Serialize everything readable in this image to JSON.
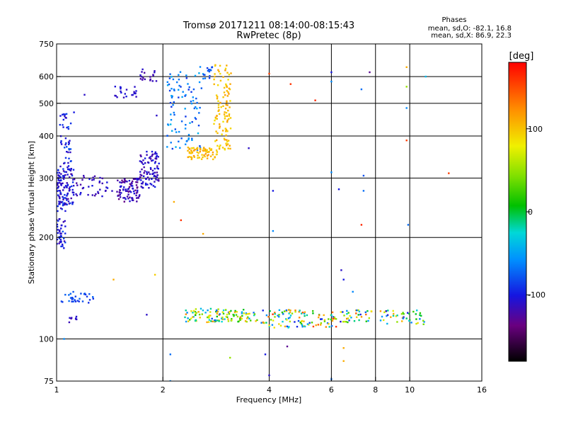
{
  "chart_data": {
    "type": "scatter",
    "title": "Tromsø 20171211 08:14:00-08:15:43",
    "subtitle": "RwPretec (8p)",
    "xlabel": "Frequency [MHz]",
    "ylabel": "Stationary phase Virtual Height [km]",
    "x_scale": "log",
    "y_scale": "log",
    "xlim": [
      1,
      16
    ],
    "ylim": [
      75,
      750
    ],
    "x_ticks": [
      1,
      2,
      4,
      6,
      8,
      10,
      16
    ],
    "y_ticks": [
      75,
      100,
      200,
      300,
      400,
      500,
      600,
      750
    ],
    "grid": true,
    "stats": {
      "heading": "Phases",
      "line_o": "mean, sd,O: -82.1, 16.8",
      "line_x": "mean, sd,X: 86.9, 22.3"
    },
    "colorbar": {
      "label": "[deg]",
      "range": [
        -180,
        180
      ],
      "ticks": [
        100,
        0,
        -100
      ],
      "tick_labels": [
        "100",
        "0",
        "-100"
      ]
    },
    "clusters": [
      {
        "f": [
          1.0,
          1.06
        ],
        "h": [
          185,
          260
        ],
        "n": 50,
        "phase": [
          -120,
          -80
        ]
      },
      {
        "f": [
          1.0,
          1.12
        ],
        "h": [
          250,
          320
        ],
        "n": 110,
        "phase": [
          -125,
          -85
        ]
      },
      {
        "f": [
          1.02,
          1.1
        ],
        "h": [
          320,
          470
        ],
        "n": 45,
        "phase": [
          -115,
          -75
        ]
      },
      {
        "f": [
          1.1,
          1.45
        ],
        "h": [
          265,
          305
        ],
        "n": 40,
        "phase": [
          -125,
          -100
        ]
      },
      {
        "f": [
          1.48,
          1.72
        ],
        "h": [
          255,
          300
        ],
        "n": 90,
        "phase": [
          -135,
          -100
        ]
      },
      {
        "f": [
          1.72,
          1.95
        ],
        "h": [
          280,
          360
        ],
        "n": 90,
        "phase": [
          -125,
          -95
        ]
      },
      {
        "f": [
          1.45,
          1.7
        ],
        "h": [
          520,
          570
        ],
        "n": 22,
        "phase": [
          -120,
          -100
        ]
      },
      {
        "f": [
          1.72,
          1.92
        ],
        "h": [
          580,
          640
        ],
        "n": 18,
        "phase": [
          -125,
          -105
        ]
      },
      {
        "f": [
          2.05,
          2.6
        ],
        "h": [
          360,
          620
        ],
        "n": 95,
        "phase": [
          -95,
          -40
        ]
      },
      {
        "f": [
          2.55,
          2.8
        ],
        "h": [
          580,
          650
        ],
        "n": 16,
        "phase": [
          -95,
          -60
        ]
      },
      {
        "f": [
          2.35,
          2.85
        ],
        "h": [
          340,
          370
        ],
        "n": 70,
        "phase": [
          90,
          120
        ]
      },
      {
        "f": [
          2.78,
          3.12
        ],
        "h": [
          360,
          650
        ],
        "n": 110,
        "phase": [
          85,
          120
        ]
      },
      {
        "f": [
          1.03,
          1.27
        ],
        "h": [
          128,
          138
        ],
        "n": 30,
        "phase": [
          -95,
          -70
        ]
      },
      {
        "f": [
          1.08,
          1.14
        ],
        "h": [
          112,
          117
        ],
        "n": 8,
        "phase": [
          -125,
          -105
        ]
      },
      {
        "f": [
          2.3,
          3.7
        ],
        "h": [
          112,
          123
        ],
        "n": 120,
        "phase": [
          -90,
          130
        ]
      },
      {
        "f": [
          3.8,
          6.2
        ],
        "h": [
          108,
          122
        ],
        "n": 110,
        "phase": [
          -100,
          160
        ]
      },
      {
        "f": [
          6.3,
          7.8
        ],
        "h": [
          112,
          122
        ],
        "n": 35,
        "phase": [
          -120,
          150
        ]
      },
      {
        "f": [
          8.2,
          11.0
        ],
        "h": [
          110,
          122
        ],
        "n": 45,
        "phase": [
          -115,
          120
        ]
      }
    ],
    "isolated_points": [
      {
        "f": 1.05,
        "h": 100,
        "phase": -60
      },
      {
        "f": 1.12,
        "h": 470,
        "phase": -100
      },
      {
        "f": 1.2,
        "h": 530,
        "phase": -110
      },
      {
        "f": 1.45,
        "h": 150,
        "phase": 110
      },
      {
        "f": 1.9,
        "h": 155,
        "phase": 95
      },
      {
        "f": 1.92,
        "h": 460,
        "phase": -110
      },
      {
        "f": 1.8,
        "h": 118,
        "phase": -110
      },
      {
        "f": 2.1,
        "h": 90,
        "phase": -70
      },
      {
        "f": 2.15,
        "h": 255,
        "phase": 110
      },
      {
        "f": 2.25,
        "h": 225,
        "phase": 160
      },
      {
        "f": 2.6,
        "h": 205,
        "phase": 110
      },
      {
        "f": 2.1,
        "h": 75,
        "phase": -60
      },
      {
        "f": 3.1,
        "h": 88,
        "phase": 50
      },
      {
        "f": 3.5,
        "h": 368,
        "phase": -110
      },
      {
        "f": 4.0,
        "h": 612,
        "phase": 155
      },
      {
        "f": 4.1,
        "h": 275,
        "phase": -100
      },
      {
        "f": 4.1,
        "h": 209,
        "phase": -60
      },
      {
        "f": 4.6,
        "h": 570,
        "phase": 160
      },
      {
        "f": 5.4,
        "h": 510,
        "phase": 165
      },
      {
        "f": 3.9,
        "h": 90,
        "phase": -100
      },
      {
        "f": 4.0,
        "h": 78,
        "phase": -110
      },
      {
        "f": 4.5,
        "h": 95,
        "phase": -130
      },
      {
        "f": 6.0,
        "h": 618,
        "phase": -100
      },
      {
        "f": 6.0,
        "h": 580,
        "phase": -60
      },
      {
        "f": 6.3,
        "h": 278,
        "phase": -100
      },
      {
        "f": 6.4,
        "h": 160,
        "phase": -110
      },
      {
        "f": 6.5,
        "h": 150,
        "phase": -100
      },
      {
        "f": 6.9,
        "h": 138,
        "phase": -60
      },
      {
        "f": 7.3,
        "h": 550,
        "phase": -70
      },
      {
        "f": 7.4,
        "h": 305,
        "phase": -80
      },
      {
        "f": 7.3,
        "h": 218,
        "phase": 165
      },
      {
        "f": 7.4,
        "h": 275,
        "phase": -70
      },
      {
        "f": 7.7,
        "h": 618,
        "phase": -130
      },
      {
        "f": 6.0,
        "h": 76,
        "phase": -70
      },
      {
        "f": 6.5,
        "h": 94,
        "phase": 110
      },
      {
        "f": 6.5,
        "h": 86,
        "phase": 110
      },
      {
        "f": 9.8,
        "h": 640,
        "phase": 110
      },
      {
        "f": 9.8,
        "h": 560,
        "phase": 50
      },
      {
        "f": 9.8,
        "h": 484,
        "phase": -60
      },
      {
        "f": 9.8,
        "h": 388,
        "phase": 155
      },
      {
        "f": 9.9,
        "h": 218,
        "phase": -70
      },
      {
        "f": 11.1,
        "h": 600,
        "phase": -40
      },
      {
        "f": 12.9,
        "h": 310,
        "phase": 155
      },
      {
        "f": 6.0,
        "h": 312,
        "phase": -60
      }
    ]
  }
}
